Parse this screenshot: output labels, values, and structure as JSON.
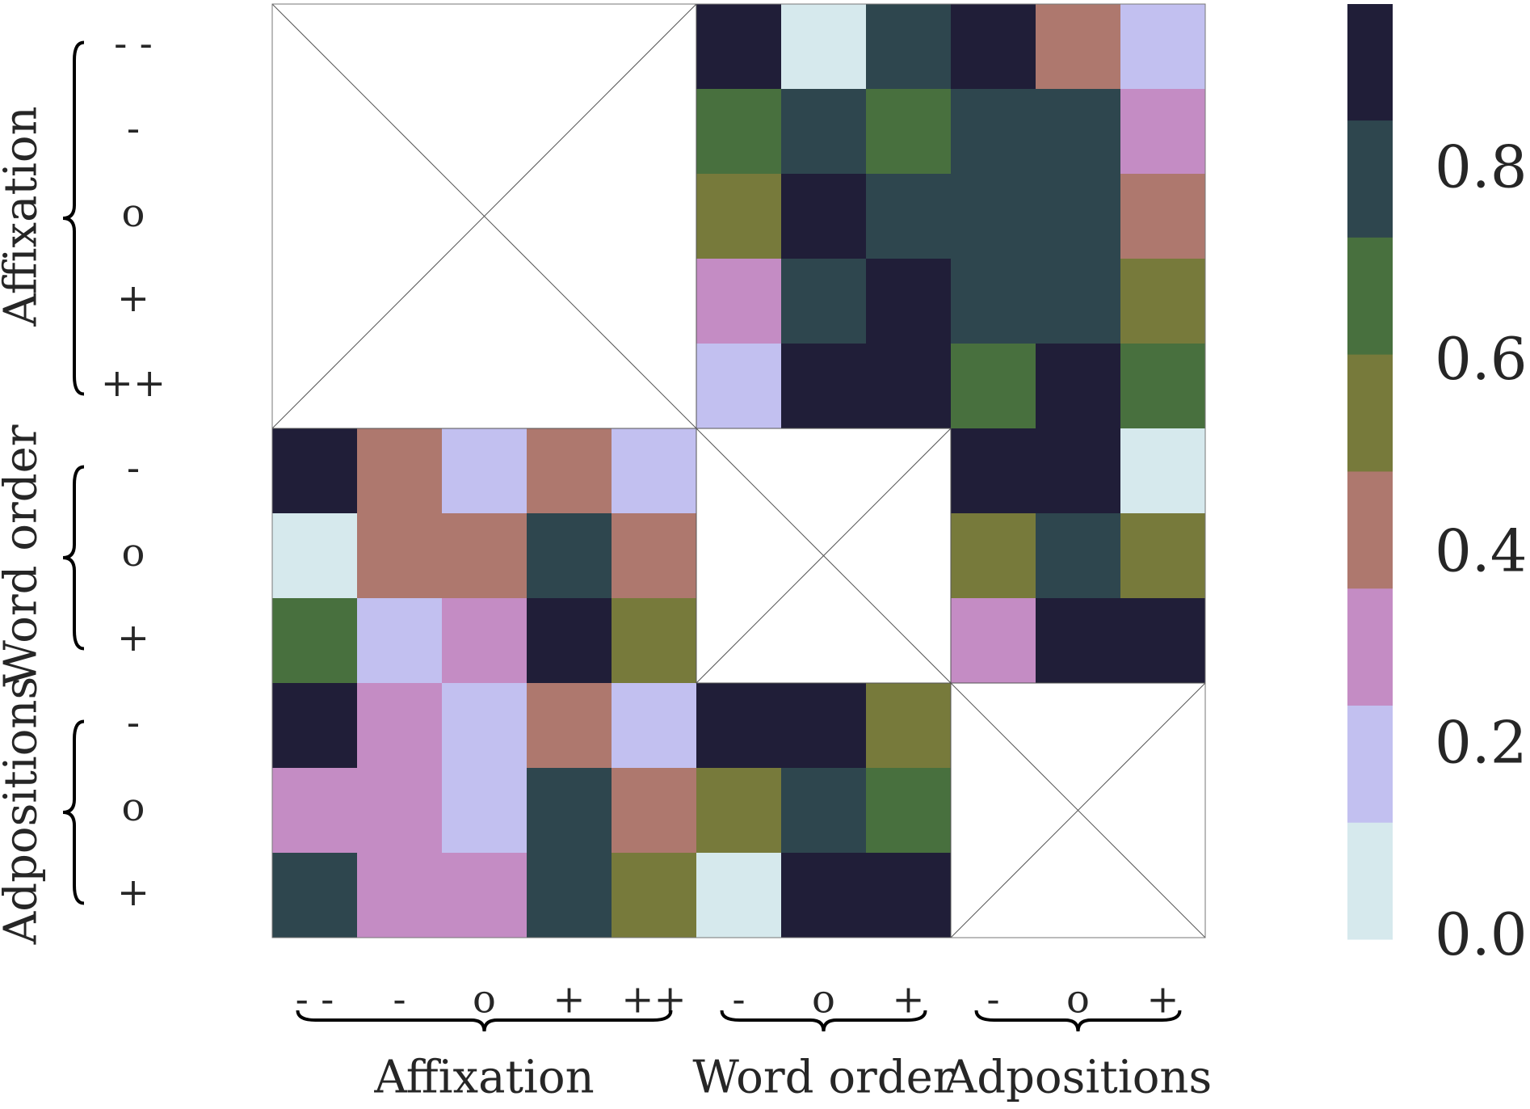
{
  "chart_data": {
    "type": "heatmap",
    "groups": [
      {
        "name": "Affixation",
        "labels": [
          "- -",
          "-",
          "o",
          "+",
          "++"
        ]
      },
      {
        "name": "Word order",
        "labels": [
          "-",
          "o",
          "+"
        ]
      },
      {
        "name": "Adpositions",
        "labels": [
          "-",
          "o",
          "+"
        ]
      }
    ],
    "values": [
      [
        null,
        null,
        null,
        null,
        null,
        0.91,
        0.06,
        0.79,
        0.91,
        0.43,
        0.18
      ],
      [
        null,
        null,
        null,
        null,
        null,
        0.67,
        0.79,
        0.67,
        0.79,
        0.79,
        0.3
      ],
      [
        null,
        null,
        null,
        null,
        null,
        0.55,
        0.91,
        0.79,
        0.79,
        0.79,
        0.43
      ],
      [
        null,
        null,
        null,
        null,
        null,
        0.3,
        0.79,
        0.91,
        0.79,
        0.79,
        0.55
      ],
      [
        null,
        null,
        null,
        null,
        null,
        0.18,
        0.91,
        0.91,
        0.67,
        0.91,
        0.67
      ],
      [
        0.91,
        0.43,
        0.18,
        0.43,
        0.18,
        null,
        null,
        null,
        0.91,
        0.91,
        0.06
      ],
      [
        0.06,
        0.43,
        0.43,
        0.79,
        0.43,
        null,
        null,
        null,
        0.55,
        0.79,
        0.55
      ],
      [
        0.67,
        0.18,
        0.3,
        0.91,
        0.55,
        null,
        null,
        null,
        0.3,
        0.91,
        0.91
      ],
      [
        0.91,
        0.3,
        0.18,
        0.43,
        0.18,
        0.91,
        0.91,
        0.55,
        null,
        null,
        null
      ],
      [
        0.3,
        0.3,
        0.18,
        0.79,
        0.43,
        0.55,
        0.79,
        0.67,
        null,
        null,
        null
      ],
      [
        0.79,
        0.3,
        0.3,
        0.79,
        0.55,
        0.06,
        0.91,
        0.91,
        null,
        null,
        null
      ]
    ],
    "colorbar": {
      "lim": [
        0,
        0.975
      ],
      "ticks": [
        {
          "value": 0,
          "label": "0.0"
        },
        0.2,
        0.4,
        0.6,
        0.8
      ],
      "bounds": [
        0,
        0.122,
        0.244,
        0.366,
        0.488,
        0.61,
        0.732,
        0.854,
        0.975
      ],
      "colors": [
        "#d6e9ed",
        "#c2c0f0",
        "#c48cc4",
        "#ae786e",
        "#777a3b",
        "#48703e",
        "#2e464e",
        "#201e38"
      ]
    }
  }
}
